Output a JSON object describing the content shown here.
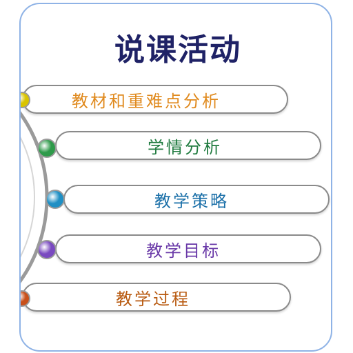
{
  "title": "说课活动",
  "items": [
    {
      "label": "教材和重难点分析",
      "color": "#e08a1e",
      "bullet": "#d9c400"
    },
    {
      "label": "学情分析",
      "color": "#1e7a3e",
      "bullet": "#2e9a4a"
    },
    {
      "label": "教学策略",
      "color": "#1a6fa8",
      "bullet": "#1f8fc4"
    },
    {
      "label": "教学目标",
      "color": "#6a3aa8",
      "bullet": "#7a4ac0"
    },
    {
      "label": "教学过程",
      "color": "#b85a10",
      "bullet": "#c8501a"
    }
  ]
}
